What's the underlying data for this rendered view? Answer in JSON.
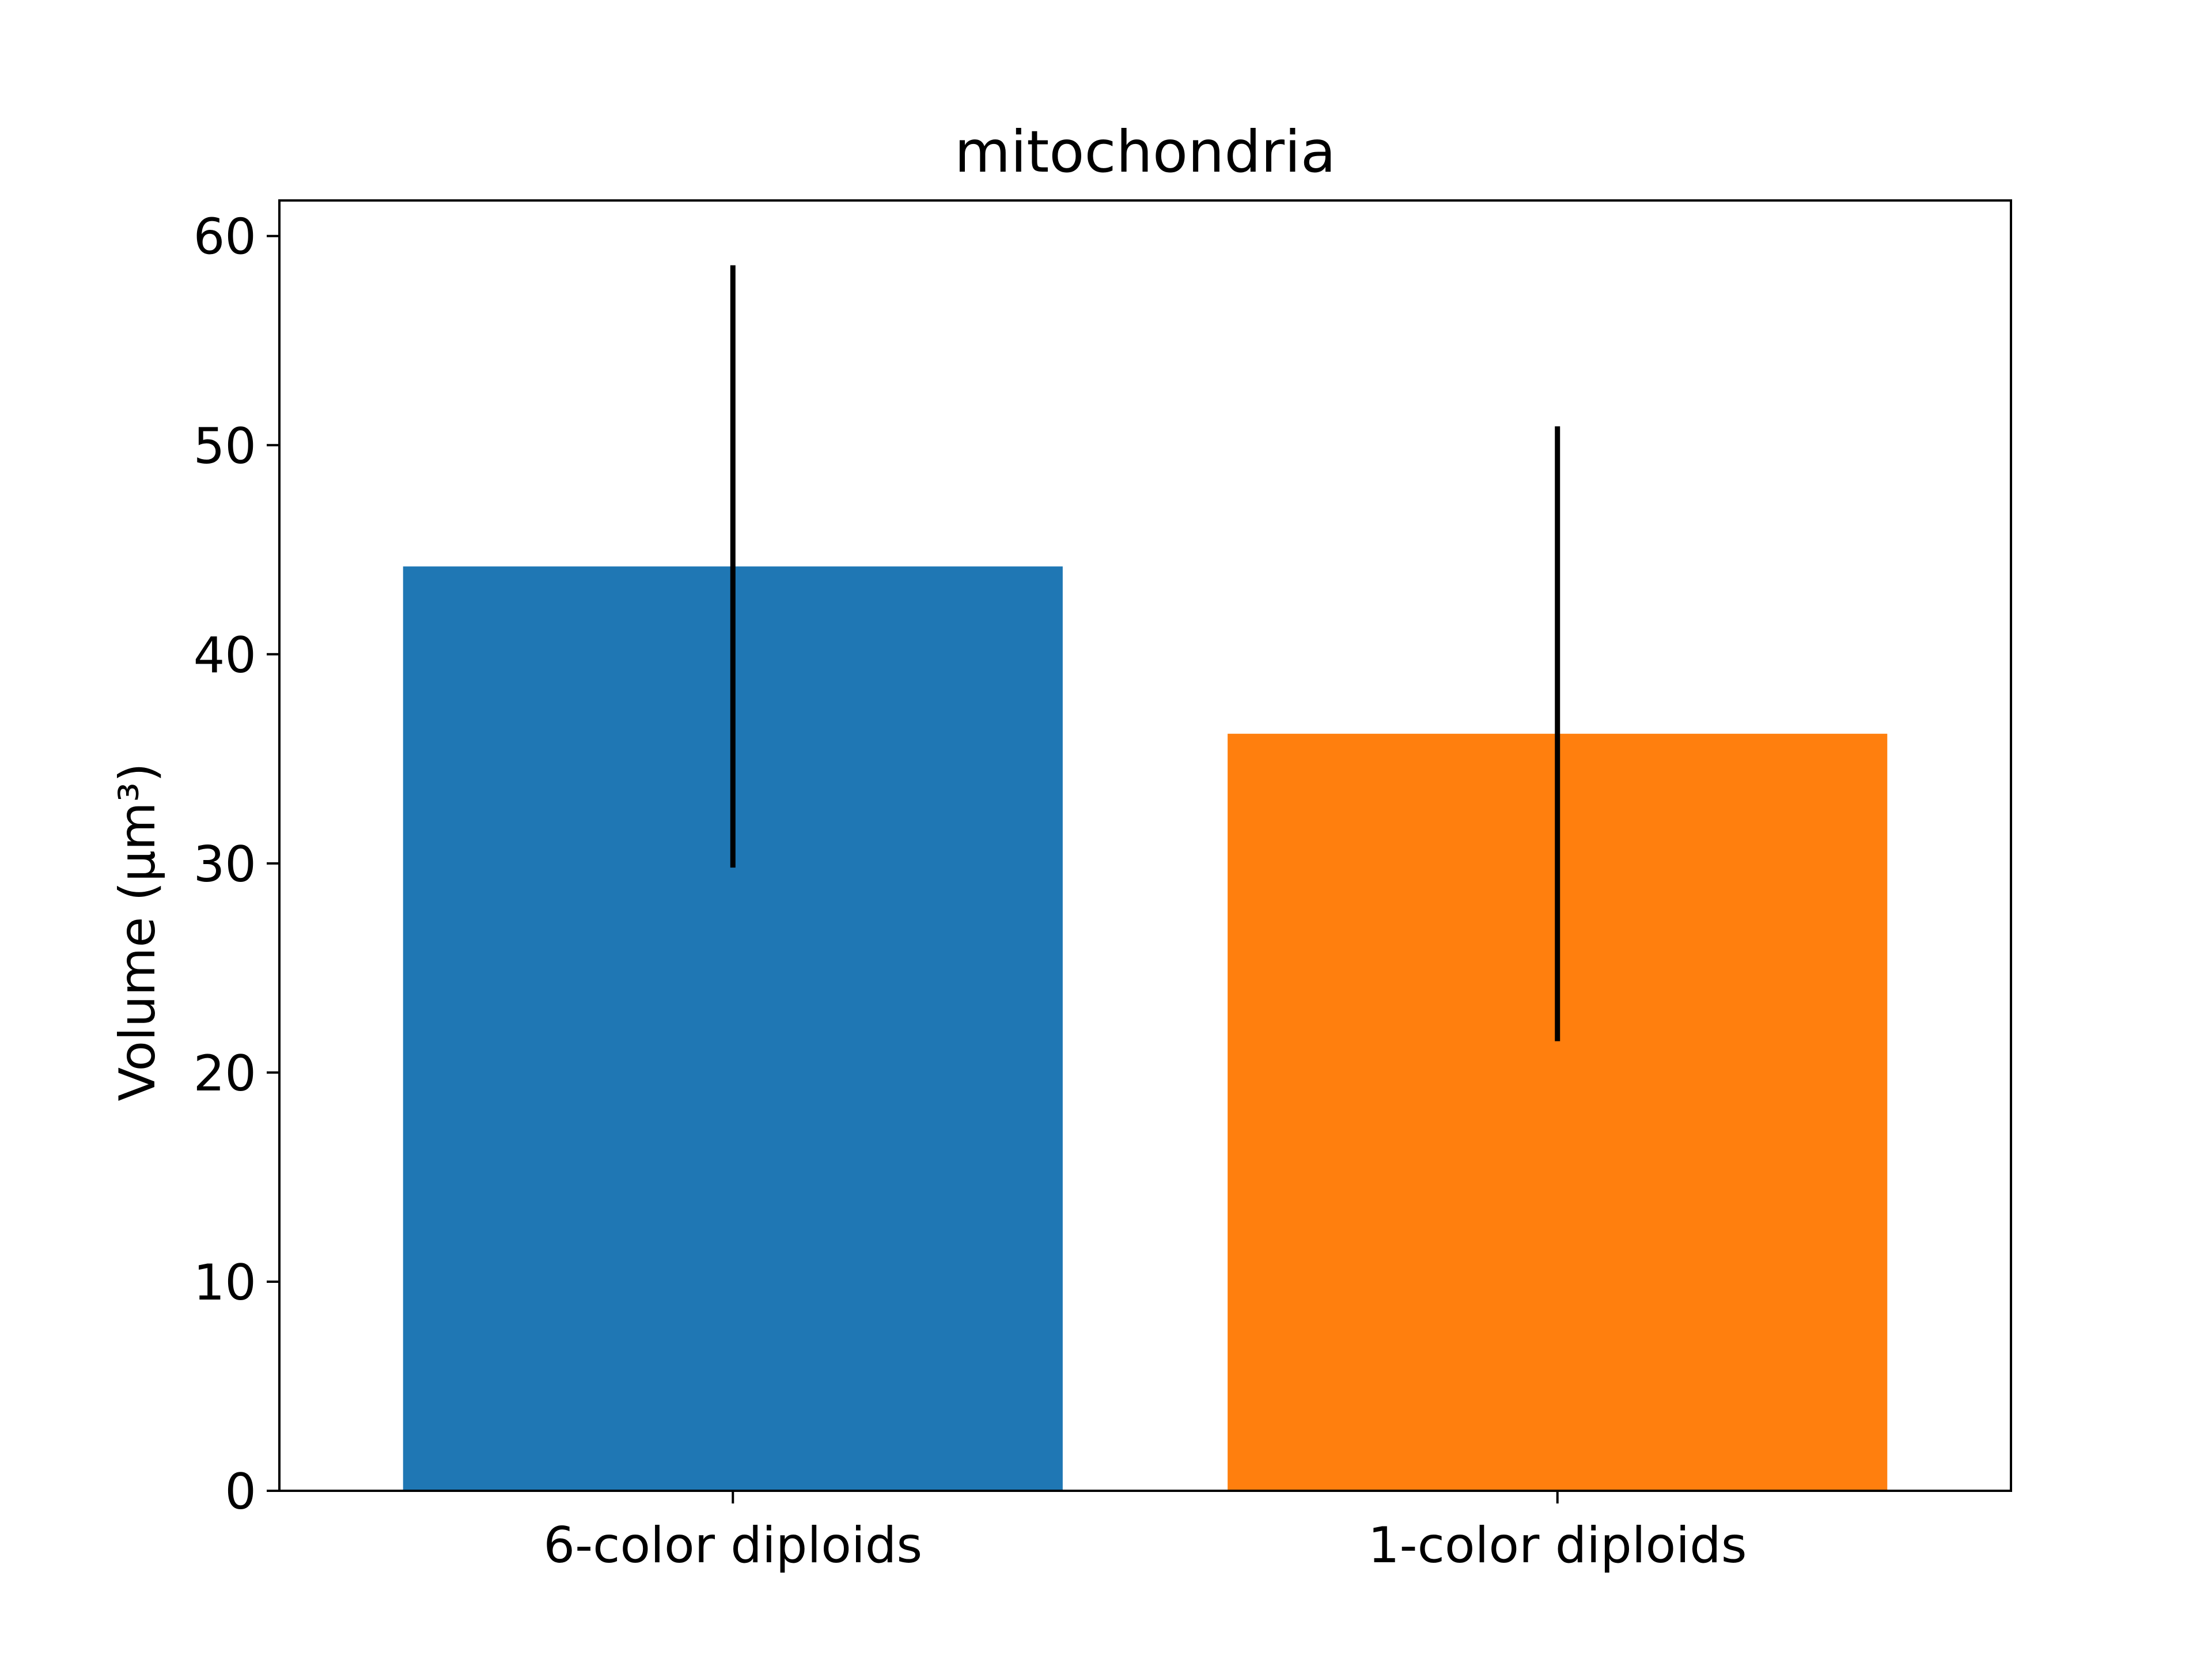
{
  "chart_data": {
    "type": "bar",
    "title": "mitochondria",
    "xlabel": "",
    "ylabel": "Volume (μm³)",
    "categories": [
      "6-color diploids",
      "1-color diploids"
    ],
    "values": [
      44.2,
      36.2
    ],
    "error_low": [
      29.8,
      21.5
    ],
    "error_high": [
      58.6,
      50.9
    ],
    "colors": [
      "#1f77b4",
      "#ff7f0e"
    ],
    "ylim": [
      0,
      61.7
    ],
    "yticks": [
      0,
      10,
      20,
      30,
      40,
      50,
      60
    ],
    "grid": false,
    "error_bar_color": "#000000"
  }
}
